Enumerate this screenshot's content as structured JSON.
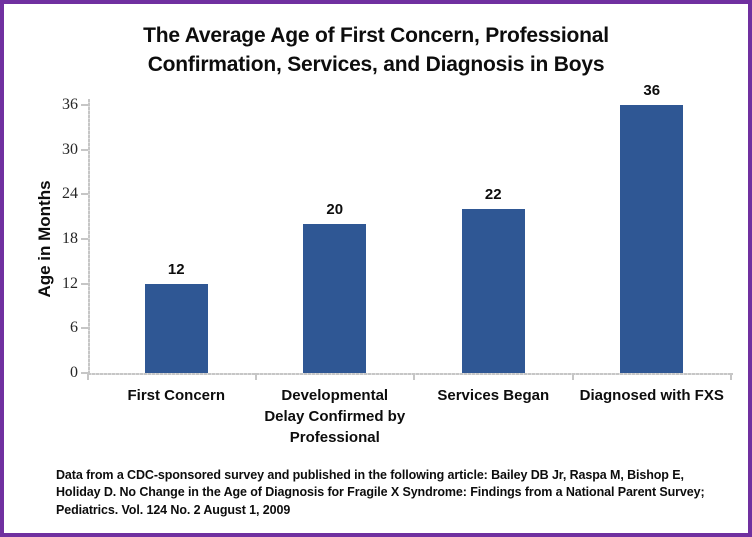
{
  "frame": {
    "border_color": "#7030A0",
    "background": "#FFFFFF"
  },
  "chart_data": {
    "type": "bar",
    "title": "The Average Age of First Concern, Professional Confirmation, Services, and Diagnosis in Boys",
    "title_lines": [
      "The Average Age of First Concern, Professional",
      "Confirmation, Services, and Diagnosis in Boys"
    ],
    "categories": [
      "First Concern",
      "Developmental Delay Confirmed by Professional",
      "Services Began",
      "Diagnosed with FXS"
    ],
    "category_label_lines": [
      [
        "First Concern"
      ],
      [
        "Developmental",
        "Delay Confirmed by",
        "Professional"
      ],
      [
        "Services Began"
      ],
      [
        "Diagnosed with FXS"
      ]
    ],
    "values": [
      12,
      20,
      22,
      36
    ],
    "data_labels": [
      12,
      20,
      22,
      36
    ],
    "xlabel": "",
    "ylabel": "Age in Months",
    "ylim": [
      0,
      36
    ],
    "yticks": [
      0,
      6,
      12,
      18,
      24,
      30,
      36
    ],
    "grid": false,
    "legend": "none",
    "bar_color": "#2F5794",
    "axis_color": "#C6C6C6"
  },
  "footer": {
    "lines": [
      "Data from a CDC-sponsored survey and published in the following article: Bailey DB Jr, Raspa M, Bishop E,",
      "Holiday D. No Change in the Age of Diagnosis for Fragile X Syndrome: Findings from a National Parent Survey;",
      "Pediatrics. Vol. 124 No. 2 August 1, 2009"
    ]
  }
}
